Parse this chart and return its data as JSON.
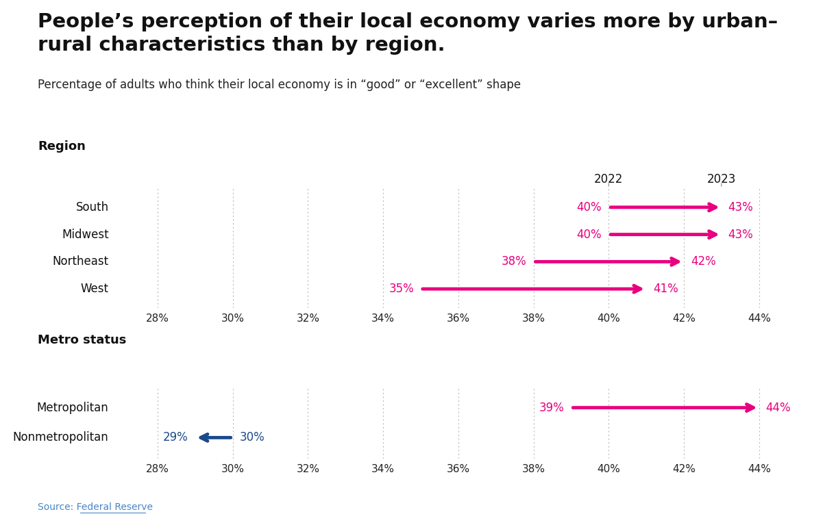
{
  "title": "People’s perception of their local economy varies more by urban–\nrural characteristics than by region.",
  "subtitle": "Percentage of adults who think their local economy is in “good” or “excellent” shape",
  "source": "Source: Federal Reserve",
  "xlim": [
    27,
    45.5
  ],
  "xticks": [
    28,
    30,
    32,
    34,
    36,
    38,
    40,
    42,
    44
  ],
  "region_section_label": "Region",
  "metro_section_label": "Metro status",
  "region_data": [
    {
      "label": "South",
      "val2022": 40,
      "val2023": 43,
      "color": "#E8007F",
      "direction": "right"
    },
    {
      "label": "Midwest",
      "val2022": 40,
      "val2023": 43,
      "color": "#E8007F",
      "direction": "right"
    },
    {
      "label": "Northeast",
      "val2022": 38,
      "val2023": 42,
      "color": "#E8007F",
      "direction": "right"
    },
    {
      "label": "West",
      "val2022": 35,
      "val2023": 41,
      "color": "#E8007F",
      "direction": "right"
    }
  ],
  "metro_data": [
    {
      "label": "Metropolitan",
      "val2022": 39,
      "val2023": 44,
      "color": "#E8007F",
      "direction": "right"
    },
    {
      "label": "Nonmetropolitan",
      "val2022": 30,
      "val2023": 29,
      "color": "#1A4A8A",
      "direction": "left"
    }
  ],
  "background_color": "#FFFFFF",
  "grid_color": "#BBBBBB",
  "tick_label_color": "#222222",
  "section_label_fontsize": 13,
  "row_label_fontsize": 12,
  "data_label_fontsize": 12,
  "tick_fontsize": 11,
  "title_fontsize": 21,
  "subtitle_fontsize": 12,
  "source_fontsize": 10,
  "year_label_fontsize": 12,
  "arrow_linewidth": 3.5
}
